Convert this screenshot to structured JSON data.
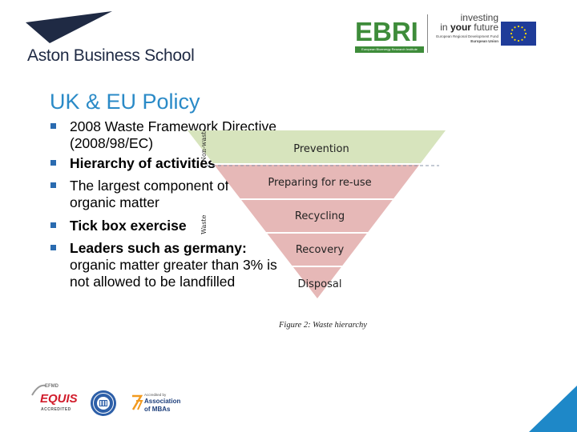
{
  "header": {
    "aston_logo": {
      "name": "Aston Business School"
    },
    "ebri_logo": {
      "name": "EBRI",
      "subtitle": "European Bioenergy Research Institute"
    },
    "investing": {
      "line1": "investing",
      "line2_prefix": "in ",
      "line2_bold": "your",
      "line2_suffix": " future",
      "line3": "European Regional Development Fund",
      "line4": "European Union"
    },
    "eu_flag_icon": "eu-flag-icon"
  },
  "slide": {
    "title": "UK & EU Policy",
    "bullets": [
      {
        "bold": "",
        "text": "2008 Waste Framework Directive (2008/98/EC)"
      },
      {
        "bold": "Hierarchy of activities",
        "text": ""
      },
      {
        "bold": "",
        "text": "The largest component of waste is organic matter"
      },
      {
        "bold": "Tick box exercise",
        "text": ""
      },
      {
        "bold": "Leaders such as germany:",
        "text": "organic matter greater than 3% is not allowed to be landfilled"
      }
    ],
    "bullet_color": "#2a6bb0",
    "title_color": "#2a8ac7"
  },
  "pyramid": {
    "levels": [
      "Prevention",
      "Preparing for re-use",
      "Recycling",
      "Recovery",
      "Disposal"
    ],
    "side_labels": [
      "Non-waste",
      "Waste"
    ],
    "caption": "Figure 2: Waste hierarchy",
    "colors": {
      "top": "#d7e4bd",
      "middle": "#e6b8b7",
      "line": "#9aa6b8"
    }
  },
  "footer": {
    "equis": {
      "top": "EFMD",
      "main": "EQUIS",
      "bottom": "ACCREDITED"
    },
    "seal_icon": "accreditation-seal-icon",
    "amba": {
      "small": "Accredited by",
      "line1": "Association",
      "line2": "of MBAs"
    },
    "corner_color": "#1e88c8"
  }
}
